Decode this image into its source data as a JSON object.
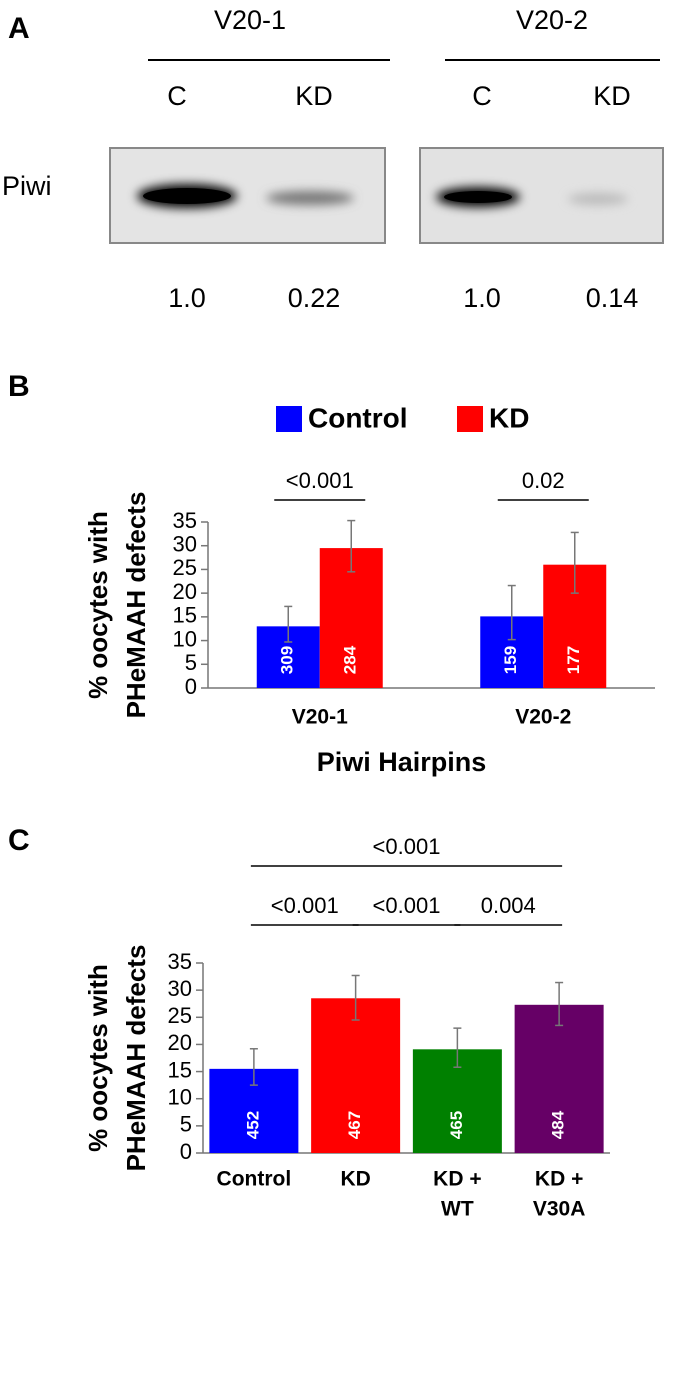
{
  "panel_labels": [
    "A",
    "B",
    "C"
  ],
  "blot": {
    "row_label": "Piwi",
    "groups": [
      {
        "name": "V20-1",
        "lanes": [
          "C",
          "KD"
        ],
        "levels": [
          {
            "value": 1.0,
            "label": "1.0"
          },
          0.22
        ]
      },
      {
        "name": "V20-2",
        "lanes": [
          "C",
          "KD"
        ],
        "levels": [
          {
            "value": 1.0,
            "label": "1.0"
          },
          0.14
        ]
      }
    ]
  },
  "chart_data": [
    {
      "type": "bar",
      "ylabel": [
        "% oocytes with",
        "PHeMAAH defects"
      ],
      "xlabel": "Piwi Hairpins",
      "categories": [
        "V20-1",
        "V20-2"
      ],
      "legend": "top",
      "series": [
        {
          "name": "Control",
          "color": "#0000ff",
          "values": [
            13,
            15.1
          ],
          "error_low": [
            3.3,
            4.9
          ],
          "error_high": [
            4.2,
            6.5
          ],
          "n": [
            309,
            159
          ]
        },
        {
          "name": "KD",
          "color": "#ff0000",
          "values": [
            29.5,
            26
          ],
          "error_low": [
            5,
            6
          ],
          "error_high": [
            5.8,
            6.8
          ],
          "n": [
            284,
            177
          ]
        }
      ],
      "ylim": [
        0,
        35
      ],
      "yticks": [
        0,
        5,
        10,
        15,
        20,
        25,
        30,
        35
      ],
      "comparisons": [
        {
          "label": "<0.001",
          "category": 0,
          "series": [
            0,
            1
          ]
        },
        {
          "label": "0.02",
          "category": 1,
          "series": [
            0,
            1
          ]
        }
      ]
    },
    {
      "type": "bar",
      "ylabel": [
        "% oocytes with",
        "PHeMAAH defects"
      ],
      "categories": [
        [
          "Control"
        ],
        [
          "KD"
        ],
        [
          "KD +",
          "WT"
        ],
        [
          "KD +",
          "V30A"
        ]
      ],
      "values": [
        15.5,
        28.5,
        19.1,
        27.3
      ],
      "colors": [
        "#0000ff",
        "#ff0000",
        "#008000",
        "#660066"
      ],
      "error_low": [
        3,
        4,
        3.3,
        3.8
      ],
      "error_high": [
        3.7,
        4.2,
        3.9,
        4.1
      ],
      "n": [
        452,
        467,
        465,
        484
      ],
      "ylim": [
        0,
        35
      ],
      "yticks": [
        0,
        5,
        10,
        15,
        20,
        25,
        30,
        35
      ],
      "comparisons": [
        {
          "label": "<0.001",
          "categories": [
            0,
            3
          ]
        },
        {
          "label": "<0.001",
          "categories": [
            0,
            1
          ]
        },
        {
          "label": "<0.001",
          "categories": [
            1,
            2
          ]
        },
        {
          "label": "0.004",
          "categories": [
            2,
            3
          ]
        }
      ]
    }
  ]
}
